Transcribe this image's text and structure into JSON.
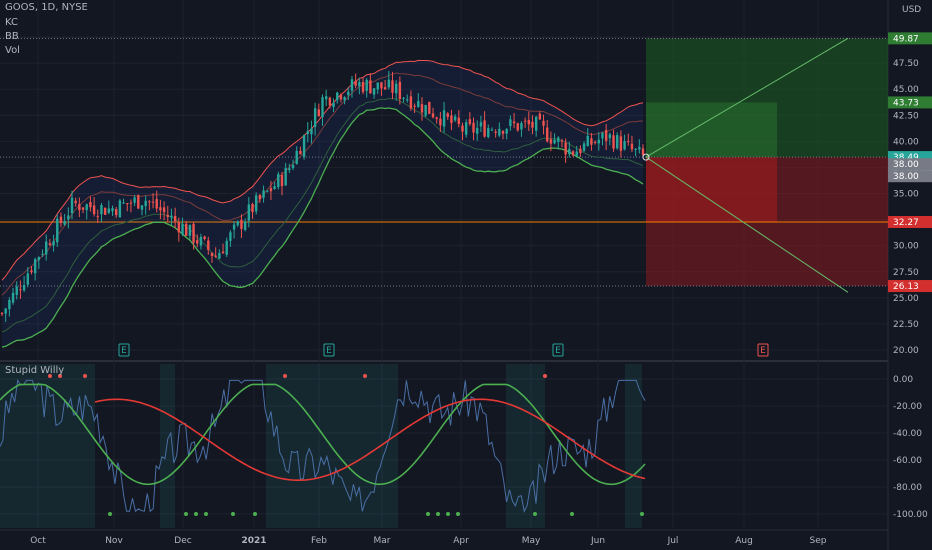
{
  "header": {
    "symbol_line": "GOOS, 1D, NYSE",
    "indicators": [
      "KC",
      "BB",
      "Vol"
    ],
    "currency": "USD"
  },
  "oscillator": {
    "name": "Stupid Willy"
  },
  "colors": {
    "background": "#131722",
    "up_candle": "#26a69a",
    "down_candle": "#ef5350",
    "bb_line": "#4caf50",
    "kc_line": "#ef5350",
    "profit_zone": "#1b5e20",
    "loss_zone": "#8b1a1f",
    "osc_fast": "#4a6fa5",
    "osc_mid": "#4caf50",
    "osc_slow": "#e53935"
  },
  "chart_data": [
    {
      "type": "candlestick",
      "x_ticks": [
        "Oct",
        "Nov",
        "Dec",
        "2021",
        "Feb",
        "Mar",
        "Apr",
        "May",
        "Jun",
        "Jul",
        "Aug",
        "Sep"
      ],
      "y_ticks": [
        20.0,
        22.5,
        25.0,
        27.5,
        30.0,
        32.5,
        35.0,
        37.5,
        40.0,
        42.5,
        45.0,
        47.5,
        50.0
      ],
      "ylim": [
        19,
        52
      ],
      "close_series": [
        {
          "month": "Oct-start",
          "close": 23.5
        },
        {
          "month": "Oct-mid",
          "close": 29.0
        },
        {
          "month": "Oct-late",
          "close": 34.0
        },
        {
          "month": "Nov",
          "close": 33.5
        },
        {
          "month": "Nov-late",
          "close": 34.5
        },
        {
          "month": "Dec",
          "close": 32.0
        },
        {
          "month": "Dec-late",
          "close": 29.0
        },
        {
          "month": "2021",
          "close": 33.5
        },
        {
          "month": "Jan-late",
          "close": 37.0
        },
        {
          "month": "Feb",
          "close": 44.0
        },
        {
          "month": "Feb-mid",
          "close": 45.5
        },
        {
          "month": "Mar",
          "close": 45.0
        },
        {
          "month": "Mar-mid",
          "close": 43.0
        },
        {
          "month": "Apr",
          "close": 41.0
        },
        {
          "month": "Apr-mid",
          "close": 41.5
        },
        {
          "month": "May",
          "close": 41.5
        },
        {
          "month": "May-mid",
          "close": 39.0
        },
        {
          "month": "Jun",
          "close": 40.5
        },
        {
          "month": "Jun-mid",
          "close": 38.49
        }
      ],
      "price_labels": [
        {
          "value": "49.87",
          "kind": "target"
        },
        {
          "value": "43.73",
          "kind": "target"
        },
        {
          "value": "38.49",
          "kind": "current",
          "sub": "04:31:29"
        },
        {
          "value": "38.00",
          "kind": "neutral"
        },
        {
          "value": "38.00",
          "kind": "neutral"
        },
        {
          "value": "32.27",
          "kind": "stop"
        },
        {
          "value": "26.13",
          "kind": "stop"
        }
      ],
      "earnings_markers": [
        "E",
        "E",
        "E",
        "E"
      ],
      "projection": {
        "entry": 38.49,
        "upper_target": 49.87,
        "lower_target": 26.13,
        "mid_target": 43.73,
        "stop": 32.27
      }
    },
    {
      "type": "line",
      "name": "Stupid Willy",
      "y_ticks": [
        "0.00",
        "-20.00",
        "-40.00",
        "-60.00",
        "-80.00",
        "-100.00"
      ],
      "ylim": [
        -103,
        3
      ]
    }
  ]
}
